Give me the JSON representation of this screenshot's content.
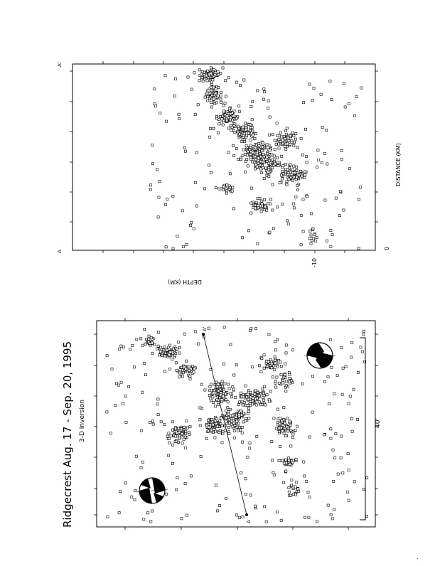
{
  "title": "Ridgecrest Aug. 17 - Sep. 20, 1995",
  "subtitle": "3-D Inversion",
  "map_panel": {
    "lon_label": "40'",
    "profile_end_a": "A",
    "profile_end_a_prime": "A'"
  },
  "section_panel": {
    "xlabel": "DISTANCE (KM)",
    "ylabel": "DEPTH (KM)",
    "tick_0": "0",
    "tick_minus10": "-10",
    "end_a": "A",
    "end_a_prime": "A'"
  },
  "footer_mark": ".",
  "chart_data": [
    {
      "type": "scatter",
      "name": "cross-section",
      "title": "",
      "xlabel": "DISTANCE (KM)",
      "ylabel": "DEPTH (KM)",
      "x_range_note": "A to A'",
      "ylim": [
        -12,
        0
      ],
      "y_tick_labels": [
        "0",
        "-10"
      ],
      "cluster_centers": [
        {
          "x": 0.9,
          "y": -3.5
        },
        {
          "x": 0.7,
          "y": -4.2
        },
        {
          "x": 0.55,
          "y": -5.5
        },
        {
          "x": 0.45,
          "y": -6.5
        },
        {
          "x": 0.35,
          "y": -8.0
        },
        {
          "x": 0.15,
          "y": -6.0
        }
      ]
    },
    {
      "type": "scatter",
      "name": "epicenter-map",
      "title": "Ridgecrest Aug. 17 - Sep. 20, 1995",
      "subtitle": "3-D Inversion",
      "tick_labels": [
        "40'"
      ],
      "profile": [
        "A",
        "A'"
      ]
    }
  ]
}
